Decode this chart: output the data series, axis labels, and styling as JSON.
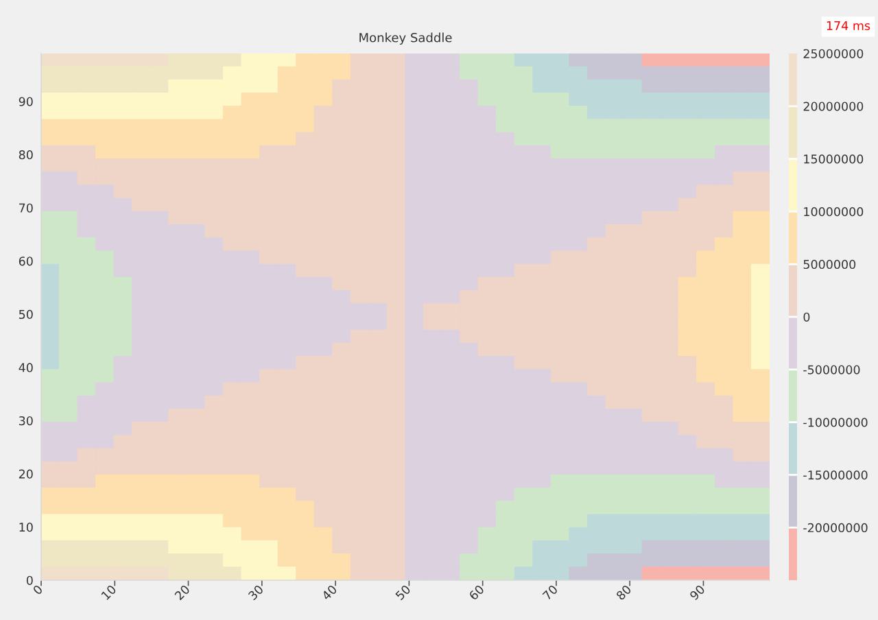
{
  "chart_data": {
    "type": "heatmap",
    "title": "Monkey Saddle",
    "x": [
      1.24,
      3.71,
      6.19,
      8.66,
      11.14,
      13.61,
      16.09,
      18.56,
      21.04,
      23.51,
      25.99,
      28.46,
      30.94,
      33.41,
      35.89,
      38.36,
      40.84,
      43.31,
      45.79,
      48.26,
      50.74,
      53.21,
      55.69,
      58.16,
      60.64,
      63.11,
      65.59,
      68.06,
      70.54,
      73.01,
      75.49,
      77.96,
      80.44,
      82.91,
      85.39,
      87.86,
      90.34,
      92.81,
      95.29,
      97.76
    ],
    "y": [
      97.76,
      95.29,
      92.81,
      90.34,
      87.86,
      85.39,
      82.91,
      80.44,
      77.96,
      75.49,
      73.01,
      70.54,
      68.06,
      65.59,
      63.11,
      60.64,
      58.16,
      55.69,
      53.21,
      50.74,
      48.26,
      45.79,
      43.31,
      40.84,
      38.36,
      35.89,
      33.41,
      30.94,
      28.46,
      25.99,
      23.51,
      21.04,
      18.56,
      16.09,
      13.61,
      11.14,
      8.66,
      6.19,
      3.71,
      1.24
    ],
    "cells": [
      [
        22500000,
        22500000,
        22500000,
        22500000,
        22500000,
        22500000,
        22500000,
        17500000,
        17500000,
        17500000,
        17500000,
        12500000,
        12500000,
        12500000,
        7500000,
        7500000,
        7500000,
        2500000,
        2500000,
        2500000,
        -2500000,
        -2500000,
        -2500000,
        -7500000,
        -7500000,
        -7500000,
        -12500000,
        -12500000,
        -12500000,
        -17500000,
        -17500000,
        -17500000,
        -17500000,
        -22500000,
        -22500000,
        -22500000,
        -22500000,
        -22500000,
        -22500000,
        -22500000
      ],
      [
        17500000,
        17500000,
        17500000,
        17500000,
        17500000,
        17500000,
        17500000,
        17500000,
        17500000,
        17500000,
        12500000,
        12500000,
        12500000,
        7500000,
        7500000,
        7500000,
        7500000,
        2500000,
        2500000,
        2500000,
        -2500000,
        -2500000,
        -2500000,
        -7500000,
        -7500000,
        -7500000,
        -7500000,
        -12500000,
        -12500000,
        -12500000,
        -17500000,
        -17500000,
        -17500000,
        -17500000,
        -17500000,
        -17500000,
        -17500000,
        -17500000,
        -17500000,
        -17500000
      ],
      [
        17500000,
        17500000,
        17500000,
        17500000,
        17500000,
        17500000,
        17500000,
        12500000,
        12500000,
        12500000,
        12500000,
        12500000,
        12500000,
        7500000,
        7500000,
        7500000,
        2500000,
        2500000,
        2500000,
        2500000,
        -2500000,
        -2500000,
        -2500000,
        -2500000,
        -7500000,
        -7500000,
        -7500000,
        -12500000,
        -12500000,
        -12500000,
        -12500000,
        -12500000,
        -12500000,
        -17500000,
        -17500000,
        -17500000,
        -17500000,
        -17500000,
        -17500000,
        -17500000
      ],
      [
        12500000,
        12500000,
        12500000,
        12500000,
        12500000,
        12500000,
        12500000,
        12500000,
        12500000,
        12500000,
        12500000,
        7500000,
        7500000,
        7500000,
        7500000,
        7500000,
        2500000,
        2500000,
        2500000,
        2500000,
        -2500000,
        -2500000,
        -2500000,
        -2500000,
        -7500000,
        -7500000,
        -7500000,
        -7500000,
        -7500000,
        -12500000,
        -12500000,
        -12500000,
        -12500000,
        -12500000,
        -12500000,
        -12500000,
        -12500000,
        -12500000,
        -12500000,
        -12500000
      ],
      [
        12500000,
        12500000,
        12500000,
        12500000,
        12500000,
        12500000,
        12500000,
        12500000,
        12500000,
        12500000,
        7500000,
        7500000,
        7500000,
        7500000,
        7500000,
        2500000,
        2500000,
        2500000,
        2500000,
        2500000,
        -2500000,
        -2500000,
        -2500000,
        -2500000,
        -2500000,
        -7500000,
        -7500000,
        -7500000,
        -7500000,
        -7500000,
        -12500000,
        -12500000,
        -12500000,
        -12500000,
        -12500000,
        -12500000,
        -12500000,
        -12500000,
        -12500000,
        -12500000
      ],
      [
        7500000,
        7500000,
        7500000,
        7500000,
        7500000,
        7500000,
        7500000,
        7500000,
        7500000,
        7500000,
        7500000,
        7500000,
        7500000,
        7500000,
        7500000,
        2500000,
        2500000,
        2500000,
        2500000,
        2500000,
        -2500000,
        -2500000,
        -2500000,
        -2500000,
        -2500000,
        -7500000,
        -7500000,
        -7500000,
        -7500000,
        -7500000,
        -7500000,
        -7500000,
        -7500000,
        -7500000,
        -7500000,
        -7500000,
        -7500000,
        -7500000,
        -7500000,
        -7500000
      ],
      [
        7500000,
        7500000,
        7500000,
        7500000,
        7500000,
        7500000,
        7500000,
        7500000,
        7500000,
        7500000,
        7500000,
        7500000,
        7500000,
        7500000,
        2500000,
        2500000,
        2500000,
        2500000,
        2500000,
        2500000,
        -2500000,
        -2500000,
        -2500000,
        -2500000,
        -2500000,
        -2500000,
        -7500000,
        -7500000,
        -7500000,
        -7500000,
        -7500000,
        -7500000,
        -7500000,
        -7500000,
        -7500000,
        -7500000,
        -7500000,
        -7500000,
        -7500000,
        -7500000
      ],
      [
        2500000,
        2500000,
        2500000,
        7500000,
        7500000,
        7500000,
        7500000,
        7500000,
        7500000,
        7500000,
        7500000,
        7500000,
        2500000,
        2500000,
        2500000,
        2500000,
        2500000,
        2500000,
        2500000,
        2500000,
        -2500000,
        -2500000,
        -2500000,
        -2500000,
        -2500000,
        -2500000,
        -2500000,
        -2500000,
        -7500000,
        -7500000,
        -7500000,
        -7500000,
        -7500000,
        -7500000,
        -7500000,
        -7500000,
        -7500000,
        -2500000,
        -2500000,
        -2500000
      ],
      [
        2500000,
        2500000,
        2500000,
        2500000,
        2500000,
        2500000,
        2500000,
        2500000,
        2500000,
        2500000,
        2500000,
        2500000,
        2500000,
        2500000,
        2500000,
        2500000,
        2500000,
        2500000,
        2500000,
        2500000,
        -2500000,
        -2500000,
        -2500000,
        -2500000,
        -2500000,
        -2500000,
        -2500000,
        -2500000,
        -2500000,
        -2500000,
        -2500000,
        -2500000,
        -2500000,
        -2500000,
        -2500000,
        -2500000,
        -2500000,
        -2500000,
        -2500000,
        -2500000
      ],
      [
        -2500000,
        -2500000,
        2500000,
        2500000,
        2500000,
        2500000,
        2500000,
        2500000,
        2500000,
        2500000,
        2500000,
        2500000,
        2500000,
        2500000,
        2500000,
        2500000,
        2500000,
        2500000,
        2500000,
        2500000,
        -2500000,
        -2500000,
        -2500000,
        -2500000,
        -2500000,
        -2500000,
        -2500000,
        -2500000,
        -2500000,
        -2500000,
        -2500000,
        -2500000,
        -2500000,
        -2500000,
        -2500000,
        -2500000,
        -2500000,
        -2500000,
        2500000,
        2500000
      ],
      [
        -2500000,
        -2500000,
        -2500000,
        -2500000,
        2500000,
        2500000,
        2500000,
        2500000,
        2500000,
        2500000,
        2500000,
        2500000,
        2500000,
        2500000,
        2500000,
        2500000,
        2500000,
        2500000,
        2500000,
        2500000,
        -2500000,
        -2500000,
        -2500000,
        -2500000,
        -2500000,
        -2500000,
        -2500000,
        -2500000,
        -2500000,
        -2500000,
        -2500000,
        -2500000,
        -2500000,
        -2500000,
        -2500000,
        -2500000,
        2500000,
        2500000,
        2500000,
        2500000
      ],
      [
        -2500000,
        -2500000,
        -2500000,
        -2500000,
        -2500000,
        2500000,
        2500000,
        2500000,
        2500000,
        2500000,
        2500000,
        2500000,
        2500000,
        2500000,
        2500000,
        2500000,
        2500000,
        2500000,
        2500000,
        2500000,
        -2500000,
        -2500000,
        -2500000,
        -2500000,
        -2500000,
        -2500000,
        -2500000,
        -2500000,
        -2500000,
        -2500000,
        -2500000,
        -2500000,
        -2500000,
        -2500000,
        -2500000,
        2500000,
        2500000,
        2500000,
        2500000,
        2500000
      ],
      [
        -7500000,
        -7500000,
        -2500000,
        -2500000,
        -2500000,
        -2500000,
        -2500000,
        2500000,
        2500000,
        2500000,
        2500000,
        2500000,
        2500000,
        2500000,
        2500000,
        2500000,
        2500000,
        2500000,
        2500000,
        2500000,
        -2500000,
        -2500000,
        -2500000,
        -2500000,
        -2500000,
        -2500000,
        -2500000,
        -2500000,
        -2500000,
        -2500000,
        -2500000,
        -2500000,
        -2500000,
        2500000,
        2500000,
        2500000,
        2500000,
        2500000,
        7500000,
        7500000
      ],
      [
        -7500000,
        -7500000,
        -2500000,
        -2500000,
        -2500000,
        -2500000,
        -2500000,
        -2500000,
        -2500000,
        2500000,
        2500000,
        2500000,
        2500000,
        2500000,
        2500000,
        2500000,
        2500000,
        2500000,
        2500000,
        2500000,
        -2500000,
        -2500000,
        -2500000,
        -2500000,
        -2500000,
        -2500000,
        -2500000,
        -2500000,
        -2500000,
        -2500000,
        -2500000,
        2500000,
        2500000,
        2500000,
        2500000,
        2500000,
        2500000,
        2500000,
        7500000,
        7500000
      ],
      [
        -7500000,
        -7500000,
        -7500000,
        -2500000,
        -2500000,
        -2500000,
        -2500000,
        -2500000,
        -2500000,
        -2500000,
        2500000,
        2500000,
        2500000,
        2500000,
        2500000,
        2500000,
        2500000,
        2500000,
        2500000,
        2500000,
        -2500000,
        -2500000,
        -2500000,
        -2500000,
        -2500000,
        -2500000,
        -2500000,
        -2500000,
        -2500000,
        -2500000,
        2500000,
        2500000,
        2500000,
        2500000,
        2500000,
        2500000,
        2500000,
        7500000,
        7500000,
        7500000
      ],
      [
        -7500000,
        -7500000,
        -7500000,
        -7500000,
        -2500000,
        -2500000,
        -2500000,
        -2500000,
        -2500000,
        -2500000,
        -2500000,
        -2500000,
        2500000,
        2500000,
        2500000,
        2500000,
        2500000,
        2500000,
        2500000,
        2500000,
        -2500000,
        -2500000,
        -2500000,
        -2500000,
        -2500000,
        -2500000,
        -2500000,
        -2500000,
        2500000,
        2500000,
        2500000,
        2500000,
        2500000,
        2500000,
        2500000,
        2500000,
        7500000,
        7500000,
        7500000,
        7500000
      ],
      [
        -12500000,
        -7500000,
        -7500000,
        -7500000,
        -2500000,
        -2500000,
        -2500000,
        -2500000,
        -2500000,
        -2500000,
        -2500000,
        -2500000,
        -2500000,
        -2500000,
        2500000,
        2500000,
        2500000,
        2500000,
        2500000,
        2500000,
        -2500000,
        -2500000,
        -2500000,
        -2500000,
        -2500000,
        -2500000,
        2500000,
        2500000,
        2500000,
        2500000,
        2500000,
        2500000,
        2500000,
        2500000,
        2500000,
        2500000,
        7500000,
        7500000,
        7500000,
        12500000
      ],
      [
        -12500000,
        -7500000,
        -7500000,
        -7500000,
        -7500000,
        -2500000,
        -2500000,
        -2500000,
        -2500000,
        -2500000,
        -2500000,
        -2500000,
        -2500000,
        -2500000,
        -2500000,
        -2500000,
        2500000,
        2500000,
        2500000,
        2500000,
        -2500000,
        -2500000,
        -2500000,
        -2500000,
        2500000,
        2500000,
        2500000,
        2500000,
        2500000,
        2500000,
        2500000,
        2500000,
        2500000,
        2500000,
        2500000,
        7500000,
        7500000,
        7500000,
        7500000,
        12500000
      ],
      [
        -12500000,
        -7500000,
        -7500000,
        -7500000,
        -7500000,
        -2500000,
        -2500000,
        -2500000,
        -2500000,
        -2500000,
        -2500000,
        -2500000,
        -2500000,
        -2500000,
        -2500000,
        -2500000,
        -2500000,
        2500000,
        2500000,
        2500000,
        -2500000,
        -2500000,
        -2500000,
        2500000,
        2500000,
        2500000,
        2500000,
        2500000,
        2500000,
        2500000,
        2500000,
        2500000,
        2500000,
        2500000,
        2500000,
        7500000,
        7500000,
        7500000,
        7500000,
        12500000
      ],
      [
        -12500000,
        -7500000,
        -7500000,
        -7500000,
        -7500000,
        -2500000,
        -2500000,
        -2500000,
        -2500000,
        -2500000,
        -2500000,
        -2500000,
        -2500000,
        -2500000,
        -2500000,
        -2500000,
        -2500000,
        -2500000,
        -2500000,
        2500000,
        -2500000,
        2500000,
        2500000,
        2500000,
        2500000,
        2500000,
        2500000,
        2500000,
        2500000,
        2500000,
        2500000,
        2500000,
        2500000,
        2500000,
        2500000,
        7500000,
        7500000,
        7500000,
        7500000,
        12500000
      ],
      [
        -12500000,
        -7500000,
        -7500000,
        -7500000,
        -7500000,
        -2500000,
        -2500000,
        -2500000,
        -2500000,
        -2500000,
        -2500000,
        -2500000,
        -2500000,
        -2500000,
        -2500000,
        -2500000,
        -2500000,
        -2500000,
        -2500000,
        2500000,
        -2500000,
        2500000,
        2500000,
        2500000,
        2500000,
        2500000,
        2500000,
        2500000,
        2500000,
        2500000,
        2500000,
        2500000,
        2500000,
        2500000,
        2500000,
        7500000,
        7500000,
        7500000,
        7500000,
        12500000
      ],
      [
        -12500000,
        -7500000,
        -7500000,
        -7500000,
        -7500000,
        -2500000,
        -2500000,
        -2500000,
        -2500000,
        -2500000,
        -2500000,
        -2500000,
        -2500000,
        -2500000,
        -2500000,
        -2500000,
        -2500000,
        2500000,
        2500000,
        2500000,
        -2500000,
        -2500000,
        -2500000,
        2500000,
        2500000,
        2500000,
        2500000,
        2500000,
        2500000,
        2500000,
        2500000,
        2500000,
        2500000,
        2500000,
        2500000,
        7500000,
        7500000,
        7500000,
        7500000,
        12500000
      ],
      [
        -12500000,
        -7500000,
        -7500000,
        -7500000,
        -7500000,
        -2500000,
        -2500000,
        -2500000,
        -2500000,
        -2500000,
        -2500000,
        -2500000,
        -2500000,
        -2500000,
        -2500000,
        -2500000,
        2500000,
        2500000,
        2500000,
        2500000,
        -2500000,
        -2500000,
        -2500000,
        -2500000,
        2500000,
        2500000,
        2500000,
        2500000,
        2500000,
        2500000,
        2500000,
        2500000,
        2500000,
        2500000,
        2500000,
        7500000,
        7500000,
        7500000,
        7500000,
        12500000
      ],
      [
        -12500000,
        -7500000,
        -7500000,
        -7500000,
        -2500000,
        -2500000,
        -2500000,
        -2500000,
        -2500000,
        -2500000,
        -2500000,
        -2500000,
        -2500000,
        -2500000,
        2500000,
        2500000,
        2500000,
        2500000,
        2500000,
        2500000,
        -2500000,
        -2500000,
        -2500000,
        -2500000,
        -2500000,
        -2500000,
        2500000,
        2500000,
        2500000,
        2500000,
        2500000,
        2500000,
        2500000,
        2500000,
        2500000,
        2500000,
        7500000,
        7500000,
        7500000,
        12500000
      ],
      [
        -7500000,
        -7500000,
        -7500000,
        -7500000,
        -2500000,
        -2500000,
        -2500000,
        -2500000,
        -2500000,
        -2500000,
        -2500000,
        -2500000,
        2500000,
        2500000,
        2500000,
        2500000,
        2500000,
        2500000,
        2500000,
        2500000,
        -2500000,
        -2500000,
        -2500000,
        -2500000,
        -2500000,
        -2500000,
        -2500000,
        -2500000,
        2500000,
        2500000,
        2500000,
        2500000,
        2500000,
        2500000,
        2500000,
        2500000,
        7500000,
        7500000,
        7500000,
        7500000
      ],
      [
        -7500000,
        -7500000,
        -7500000,
        -2500000,
        -2500000,
        -2500000,
        -2500000,
        -2500000,
        -2500000,
        -2500000,
        2500000,
        2500000,
        2500000,
        2500000,
        2500000,
        2500000,
        2500000,
        2500000,
        2500000,
        2500000,
        -2500000,
        -2500000,
        -2500000,
        -2500000,
        -2500000,
        -2500000,
        -2500000,
        -2500000,
        -2500000,
        -2500000,
        2500000,
        2500000,
        2500000,
        2500000,
        2500000,
        2500000,
        2500000,
        7500000,
        7500000,
        7500000
      ],
      [
        -7500000,
        -7500000,
        -2500000,
        -2500000,
        -2500000,
        -2500000,
        -2500000,
        -2500000,
        -2500000,
        2500000,
        2500000,
        2500000,
        2500000,
        2500000,
        2500000,
        2500000,
        2500000,
        2500000,
        2500000,
        2500000,
        -2500000,
        -2500000,
        -2500000,
        -2500000,
        -2500000,
        -2500000,
        -2500000,
        -2500000,
        -2500000,
        -2500000,
        -2500000,
        2500000,
        2500000,
        2500000,
        2500000,
        2500000,
        2500000,
        2500000,
        7500000,
        7500000
      ],
      [
        -7500000,
        -7500000,
        -2500000,
        -2500000,
        -2500000,
        -2500000,
        -2500000,
        2500000,
        2500000,
        2500000,
        2500000,
        2500000,
        2500000,
        2500000,
        2500000,
        2500000,
        2500000,
        2500000,
        2500000,
        2500000,
        -2500000,
        -2500000,
        -2500000,
        -2500000,
        -2500000,
        -2500000,
        -2500000,
        -2500000,
        -2500000,
        -2500000,
        -2500000,
        -2500000,
        -2500000,
        2500000,
        2500000,
        2500000,
        2500000,
        2500000,
        7500000,
        7500000
      ],
      [
        -2500000,
        -2500000,
        -2500000,
        -2500000,
        -2500000,
        2500000,
        2500000,
        2500000,
        2500000,
        2500000,
        2500000,
        2500000,
        2500000,
        2500000,
        2500000,
        2500000,
        2500000,
        2500000,
        2500000,
        2500000,
        -2500000,
        -2500000,
        -2500000,
        -2500000,
        -2500000,
        -2500000,
        -2500000,
        -2500000,
        -2500000,
        -2500000,
        -2500000,
        -2500000,
        -2500000,
        -2500000,
        -2500000,
        2500000,
        2500000,
        2500000,
        2500000,
        2500000
      ],
      [
        -2500000,
        -2500000,
        -2500000,
        -2500000,
        2500000,
        2500000,
        2500000,
        2500000,
        2500000,
        2500000,
        2500000,
        2500000,
        2500000,
        2500000,
        2500000,
        2500000,
        2500000,
        2500000,
        2500000,
        2500000,
        -2500000,
        -2500000,
        -2500000,
        -2500000,
        -2500000,
        -2500000,
        -2500000,
        -2500000,
        -2500000,
        -2500000,
        -2500000,
        -2500000,
        -2500000,
        -2500000,
        -2500000,
        -2500000,
        2500000,
        2500000,
        2500000,
        2500000
      ],
      [
        -2500000,
        -2500000,
        2500000,
        2500000,
        2500000,
        2500000,
        2500000,
        2500000,
        2500000,
        2500000,
        2500000,
        2500000,
        2500000,
        2500000,
        2500000,
        2500000,
        2500000,
        2500000,
        2500000,
        2500000,
        -2500000,
        -2500000,
        -2500000,
        -2500000,
        -2500000,
        -2500000,
        -2500000,
        -2500000,
        -2500000,
        -2500000,
        -2500000,
        -2500000,
        -2500000,
        -2500000,
        -2500000,
        -2500000,
        -2500000,
        -2500000,
        2500000,
        2500000
      ],
      [
        2500000,
        2500000,
        2500000,
        2500000,
        2500000,
        2500000,
        2500000,
        2500000,
        2500000,
        2500000,
        2500000,
        2500000,
        2500000,
        2500000,
        2500000,
        2500000,
        2500000,
        2500000,
        2500000,
        2500000,
        -2500000,
        -2500000,
        -2500000,
        -2500000,
        -2500000,
        -2500000,
        -2500000,
        -2500000,
        -2500000,
        -2500000,
        -2500000,
        -2500000,
        -2500000,
        -2500000,
        -2500000,
        -2500000,
        -2500000,
        -2500000,
        -2500000,
        -2500000
      ],
      [
        2500000,
        2500000,
        2500000,
        7500000,
        7500000,
        7500000,
        7500000,
        7500000,
        7500000,
        7500000,
        7500000,
        7500000,
        2500000,
        2500000,
        2500000,
        2500000,
        2500000,
        2500000,
        2500000,
        2500000,
        -2500000,
        -2500000,
        -2500000,
        -2500000,
        -2500000,
        -2500000,
        -2500000,
        -2500000,
        -7500000,
        -7500000,
        -7500000,
        -7500000,
        -7500000,
        -7500000,
        -7500000,
        -7500000,
        -7500000,
        -2500000,
        -2500000,
        -2500000
      ],
      [
        7500000,
        7500000,
        7500000,
        7500000,
        7500000,
        7500000,
        7500000,
        7500000,
        7500000,
        7500000,
        7500000,
        7500000,
        7500000,
        7500000,
        2500000,
        2500000,
        2500000,
        2500000,
        2500000,
        2500000,
        -2500000,
        -2500000,
        -2500000,
        -2500000,
        -2500000,
        -2500000,
        -7500000,
        -7500000,
        -7500000,
        -7500000,
        -7500000,
        -7500000,
        -7500000,
        -7500000,
        -7500000,
        -7500000,
        -7500000,
        -7500000,
        -7500000,
        -7500000
      ],
      [
        7500000,
        7500000,
        7500000,
        7500000,
        7500000,
        7500000,
        7500000,
        7500000,
        7500000,
        7500000,
        7500000,
        7500000,
        7500000,
        7500000,
        7500000,
        2500000,
        2500000,
        2500000,
        2500000,
        2500000,
        -2500000,
        -2500000,
        -2500000,
        -2500000,
        -2500000,
        -7500000,
        -7500000,
        -7500000,
        -7500000,
        -7500000,
        -7500000,
        -7500000,
        -7500000,
        -7500000,
        -7500000,
        -7500000,
        -7500000,
        -7500000,
        -7500000,
        -7500000
      ],
      [
        12500000,
        12500000,
        12500000,
        12500000,
        12500000,
        12500000,
        12500000,
        12500000,
        12500000,
        12500000,
        7500000,
        7500000,
        7500000,
        7500000,
        7500000,
        2500000,
        2500000,
        2500000,
        2500000,
        2500000,
        -2500000,
        -2500000,
        -2500000,
        -2500000,
        -2500000,
        -7500000,
        -7500000,
        -7500000,
        -7500000,
        -7500000,
        -12500000,
        -12500000,
        -12500000,
        -12500000,
        -12500000,
        -12500000,
        -12500000,
        -12500000,
        -12500000,
        -12500000
      ],
      [
        12500000,
        12500000,
        12500000,
        12500000,
        12500000,
        12500000,
        12500000,
        12500000,
        12500000,
        12500000,
        12500000,
        7500000,
        7500000,
        7500000,
        7500000,
        7500000,
        2500000,
        2500000,
        2500000,
        2500000,
        -2500000,
        -2500000,
        -2500000,
        -2500000,
        -7500000,
        -7500000,
        -7500000,
        -7500000,
        -7500000,
        -12500000,
        -12500000,
        -12500000,
        -12500000,
        -12500000,
        -12500000,
        -12500000,
        -12500000,
        -12500000,
        -12500000,
        -12500000
      ],
      [
        17500000,
        17500000,
        17500000,
        17500000,
        17500000,
        17500000,
        17500000,
        12500000,
        12500000,
        12500000,
        12500000,
        12500000,
        12500000,
        7500000,
        7500000,
        7500000,
        2500000,
        2500000,
        2500000,
        2500000,
        -2500000,
        -2500000,
        -2500000,
        -2500000,
        -7500000,
        -7500000,
        -7500000,
        -12500000,
        -12500000,
        -12500000,
        -12500000,
        -12500000,
        -12500000,
        -17500000,
        -17500000,
        -17500000,
        -17500000,
        -17500000,
        -17500000,
        -17500000
      ],
      [
        17500000,
        17500000,
        17500000,
        17500000,
        17500000,
        17500000,
        17500000,
        17500000,
        17500000,
        17500000,
        12500000,
        12500000,
        12500000,
        7500000,
        7500000,
        7500000,
        7500000,
        2500000,
        2500000,
        2500000,
        -2500000,
        -2500000,
        -2500000,
        -7500000,
        -7500000,
        -7500000,
        -7500000,
        -12500000,
        -12500000,
        -12500000,
        -17500000,
        -17500000,
        -17500000,
        -17500000,
        -17500000,
        -17500000,
        -17500000,
        -17500000,
        -17500000,
        -17500000
      ],
      [
        22500000,
        22500000,
        22500000,
        22500000,
        22500000,
        22500000,
        22500000,
        17500000,
        17500000,
        17500000,
        17500000,
        12500000,
        12500000,
        12500000,
        7500000,
        7500000,
        7500000,
        2500000,
        2500000,
        2500000,
        -2500000,
        -2500000,
        -2500000,
        -7500000,
        -7500000,
        -7500000,
        -12500000,
        -12500000,
        -12500000,
        -17500000,
        -17500000,
        -17500000,
        -17500000,
        -22500000,
        -22500000,
        -22500000,
        -22500000,
        -22500000,
        -22500000,
        -22500000
      ]
    ],
    "colors": [
      "#f8b4ab",
      "#c8c5d5",
      "#bed9d9",
      "#cfe7c9",
      "#dcd1df",
      "#efd4c8",
      "#fde0ae",
      "#fef8c9",
      "#efe6c4",
      "#f1dfcb"
    ],
    "clim": [
      -25000000,
      25000000
    ],
    "cticks": [
      -20000000,
      -15000000,
      -10000000,
      -5000000,
      0,
      5000000,
      10000000,
      15000000,
      20000000,
      25000000
    ],
    "xlim": [
      0,
      99
    ],
    "ylim": [
      0,
      99
    ],
    "xticks": [
      0,
      10,
      20,
      30,
      40,
      50,
      60,
      70,
      80,
      90
    ],
    "yticks": [
      0,
      10,
      20,
      30,
      40,
      50,
      60,
      70,
      80,
      90
    ],
    "annotations": [
      "174 ms"
    ]
  }
}
